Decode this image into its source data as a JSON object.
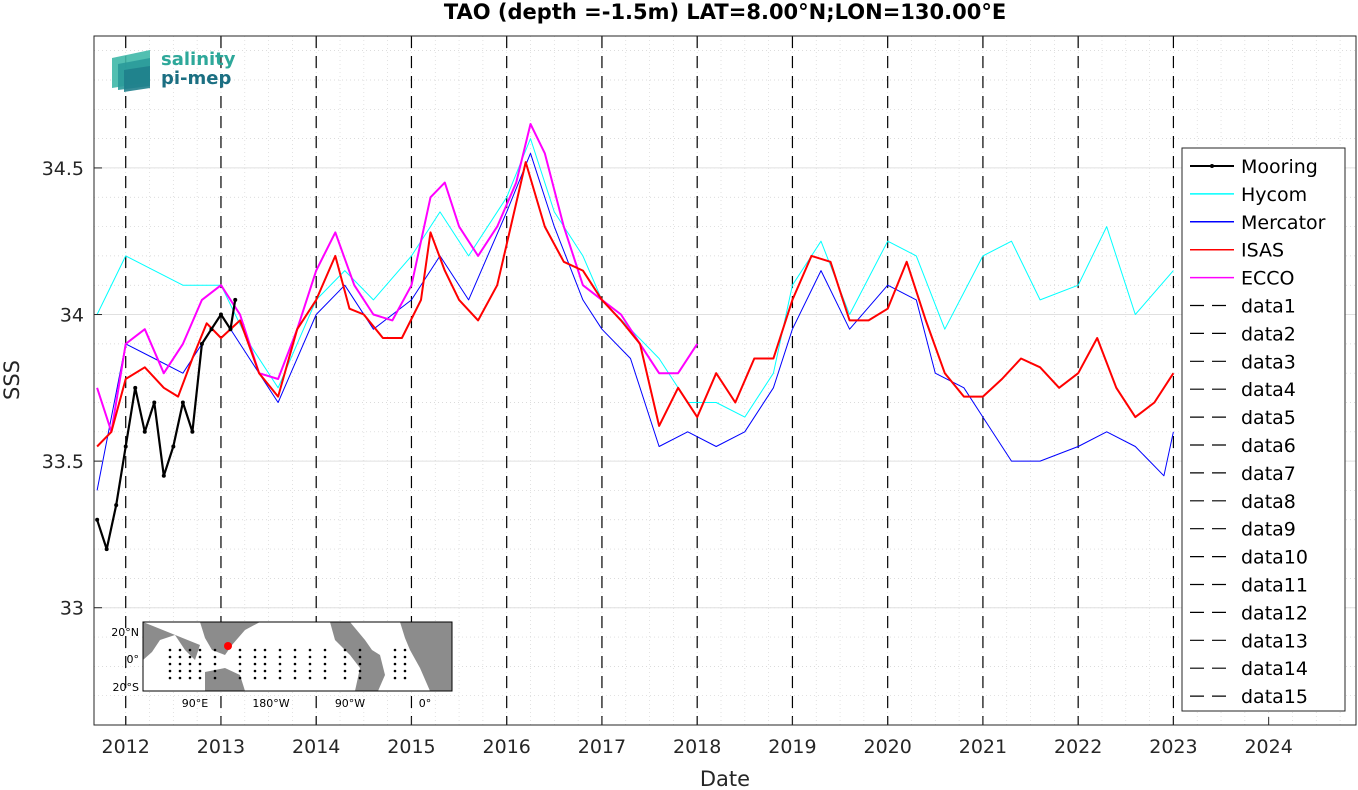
{
  "chart_data": {
    "type": "line",
    "title": "TAO (depth =-1.5m) LAT=8.00°N;LON=130.00°E",
    "xlabel": "Date",
    "ylabel": "SSS",
    "xlim": [
      "2011-09",
      "2024-12"
    ],
    "ylim": [
      32.6,
      34.95
    ],
    "x_ticks": [
      "2012",
      "2013",
      "2014",
      "2015",
      "2016",
      "2017",
      "2018",
      "2019",
      "2020",
      "2021",
      "2022",
      "2023",
      "2024"
    ],
    "y_ticks": [
      "33",
      "33.5",
      "34",
      "34.5"
    ],
    "y_tick_values": [
      33,
      33.5,
      34,
      34.5
    ],
    "grid": true,
    "legend_position": "right",
    "year_markers": [
      2012,
      2013,
      2014,
      2015,
      2016,
      2017,
      2018,
      2019,
      2020,
      2021,
      2022,
      2023
    ],
    "series": [
      {
        "name": "Mooring",
        "color": "#000000",
        "style": "solid-dots",
        "x": [
          2011.7,
          2011.8,
          2011.9,
          2012.0,
          2012.1,
          2012.2,
          2012.3,
          2012.4,
          2012.5,
          2012.6,
          2012.7,
          2012.8,
          2012.9,
          2013.0,
          2013.1,
          2013.15
        ],
        "y": [
          33.3,
          33.2,
          33.35,
          33.55,
          33.75,
          33.6,
          33.7,
          33.45,
          33.55,
          33.7,
          33.6,
          33.9,
          33.95,
          34.0,
          33.95,
          34.05
        ]
      },
      {
        "name": "Hycom",
        "color": "#00ffff",
        "style": "solid",
        "x": [
          2011.7,
          2012.0,
          2012.3,
          2012.6,
          2013.0,
          2013.3,
          2013.6,
          2014.0,
          2014.3,
          2014.6,
          2015.0,
          2015.3,
          2015.6,
          2016.0,
          2016.25,
          2016.5,
          2016.8,
          2017.0,
          2017.3,
          2017.6,
          2017.9,
          2018.2,
          2018.5,
          2018.8,
          2019.0,
          2019.3,
          2019.6,
          2020.0,
          2020.3,
          2020.6,
          2021.0,
          2021.3,
          2021.6,
          2022.0,
          2022.3,
          2022.6,
          2023.0
        ],
        "y": [
          34.0,
          34.2,
          34.15,
          34.1,
          34.1,
          33.9,
          33.75,
          34.05,
          34.15,
          34.05,
          34.2,
          34.35,
          34.2,
          34.4,
          34.6,
          34.35,
          34.2,
          34.05,
          33.95,
          33.85,
          33.7,
          33.7,
          33.65,
          33.8,
          34.1,
          34.25,
          34.0,
          34.25,
          34.2,
          33.95,
          34.2,
          34.25,
          34.05,
          34.1,
          34.3,
          34.0,
          34.15
        ]
      },
      {
        "name": "Mercator",
        "color": "#0000ff",
        "style": "solid",
        "x": [
          2011.7,
          2012.0,
          2012.3,
          2012.6,
          2013.0,
          2013.3,
          2013.6,
          2014.0,
          2014.3,
          2014.6,
          2015.0,
          2015.3,
          2015.6,
          2016.0,
          2016.25,
          2016.5,
          2016.8,
          2017.0,
          2017.3,
          2017.6,
          2017.9,
          2018.2,
          2018.5,
          2018.8,
          2019.0,
          2019.3,
          2019.6,
          2020.0,
          2020.3,
          2020.5,
          2020.8,
          2021.0,
          2021.3,
          2021.6,
          2022.0,
          2022.3,
          2022.6,
          2022.9,
          2023.0
        ],
        "y": [
          33.4,
          33.9,
          33.85,
          33.8,
          34.0,
          33.85,
          33.7,
          34.0,
          34.1,
          33.95,
          34.05,
          34.2,
          34.05,
          34.35,
          34.55,
          34.3,
          34.05,
          33.95,
          33.85,
          33.55,
          33.6,
          33.55,
          33.6,
          33.75,
          33.95,
          34.15,
          33.95,
          34.1,
          34.05,
          33.8,
          33.75,
          33.65,
          33.5,
          33.5,
          33.55,
          33.6,
          33.55,
          33.45,
          33.6
        ]
      },
      {
        "name": "ISAS",
        "color": "#ff0000",
        "style": "solid",
        "x": [
          2011.7,
          2011.85,
          2012.0,
          2012.2,
          2012.4,
          2012.55,
          2012.7,
          2012.85,
          2013.0,
          2013.2,
          2013.4,
          2013.6,
          2013.8,
          2014.0,
          2014.2,
          2014.35,
          2014.5,
          2014.7,
          2014.9,
          2015.1,
          2015.2,
          2015.35,
          2015.5,
          2015.7,
          2015.9,
          2016.1,
          2016.2,
          2016.4,
          2016.6,
          2016.8,
          2017.0,
          2017.2,
          2017.4,
          2017.6,
          2017.8,
          2018.0,
          2018.2,
          2018.4,
          2018.6,
          2018.8,
          2019.0,
          2019.2,
          2019.4,
          2019.6,
          2019.8,
          2020.0,
          2020.2,
          2020.4,
          2020.6,
          2020.8,
          2021.0,
          2021.2,
          2021.4,
          2021.6,
          2021.8,
          2022.0,
          2022.2,
          2022.4,
          2022.6,
          2022.8,
          2023.0
        ],
        "y": [
          33.55,
          33.6,
          33.78,
          33.82,
          33.75,
          33.72,
          33.85,
          33.97,
          33.92,
          33.98,
          33.8,
          33.72,
          33.95,
          34.05,
          34.2,
          34.02,
          34.0,
          33.92,
          33.92,
          34.05,
          34.28,
          34.15,
          34.05,
          33.98,
          34.1,
          34.38,
          34.52,
          34.3,
          34.18,
          34.15,
          34.05,
          33.98,
          33.9,
          33.62,
          33.75,
          33.65,
          33.8,
          33.7,
          33.85,
          33.85,
          34.05,
          34.2,
          34.18,
          33.98,
          33.98,
          34.02,
          34.18,
          33.98,
          33.8,
          33.72,
          33.72,
          33.78,
          33.85,
          33.82,
          33.75,
          33.8,
          33.92,
          33.75,
          33.65,
          33.7,
          33.8
        ]
      },
      {
        "name": "ECCO",
        "color": "#ff00ff",
        "style": "solid",
        "x": [
          2011.7,
          2011.85,
          2012.0,
          2012.2,
          2012.4,
          2012.6,
          2012.8,
          2013.0,
          2013.2,
          2013.4,
          2013.6,
          2013.8,
          2014.0,
          2014.2,
          2014.4,
          2014.6,
          2014.8,
          2015.0,
          2015.2,
          2015.35,
          2015.5,
          2015.7,
          2015.9,
          2016.1,
          2016.25,
          2016.4,
          2016.6,
          2016.8,
          2017.0,
          2017.2,
          2017.4,
          2017.6,
          2017.8,
          2018.0
        ],
        "y": [
          33.75,
          33.6,
          33.9,
          33.95,
          33.8,
          33.9,
          34.05,
          34.1,
          34.0,
          33.8,
          33.78,
          33.95,
          34.15,
          34.28,
          34.1,
          34.0,
          33.98,
          34.1,
          34.4,
          34.45,
          34.3,
          34.2,
          34.3,
          34.45,
          34.65,
          34.55,
          34.3,
          34.1,
          34.05,
          34.0,
          33.9,
          33.8,
          33.8,
          33.9
        ]
      },
      {
        "name": "data1",
        "color": "#000000",
        "style": "dashed"
      },
      {
        "name": "data2",
        "color": "#000000",
        "style": "dashed"
      },
      {
        "name": "data3",
        "color": "#000000",
        "style": "dashed"
      },
      {
        "name": "data4",
        "color": "#000000",
        "style": "dashed"
      },
      {
        "name": "data5",
        "color": "#000000",
        "style": "dashed"
      },
      {
        "name": "data6",
        "color": "#000000",
        "style": "dashed"
      },
      {
        "name": "data7",
        "color": "#000000",
        "style": "dashed"
      },
      {
        "name": "data8",
        "color": "#000000",
        "style": "dashed"
      },
      {
        "name": "data9",
        "color": "#000000",
        "style": "dashed"
      },
      {
        "name": "data10",
        "color": "#000000",
        "style": "dashed"
      },
      {
        "name": "data11",
        "color": "#000000",
        "style": "dashed"
      },
      {
        "name": "data12",
        "color": "#000000",
        "style": "dashed"
      },
      {
        "name": "data13",
        "color": "#000000",
        "style": "dashed"
      },
      {
        "name": "data14",
        "color": "#000000",
        "style": "dashed"
      },
      {
        "name": "data15",
        "color": "#000000",
        "style": "dashed"
      }
    ]
  },
  "logo": {
    "line1": "salinity",
    "line2": "pi-mep",
    "color_top": "#2ea89a",
    "color_bottom": "#1b6f82"
  },
  "inset_map": {
    "lat_labels": [
      "20°N",
      "0°",
      "20°S"
    ],
    "lon_labels": [
      "90°E",
      "180°W",
      "90°W",
      "0°"
    ],
    "marker_color": "#ff0000"
  }
}
